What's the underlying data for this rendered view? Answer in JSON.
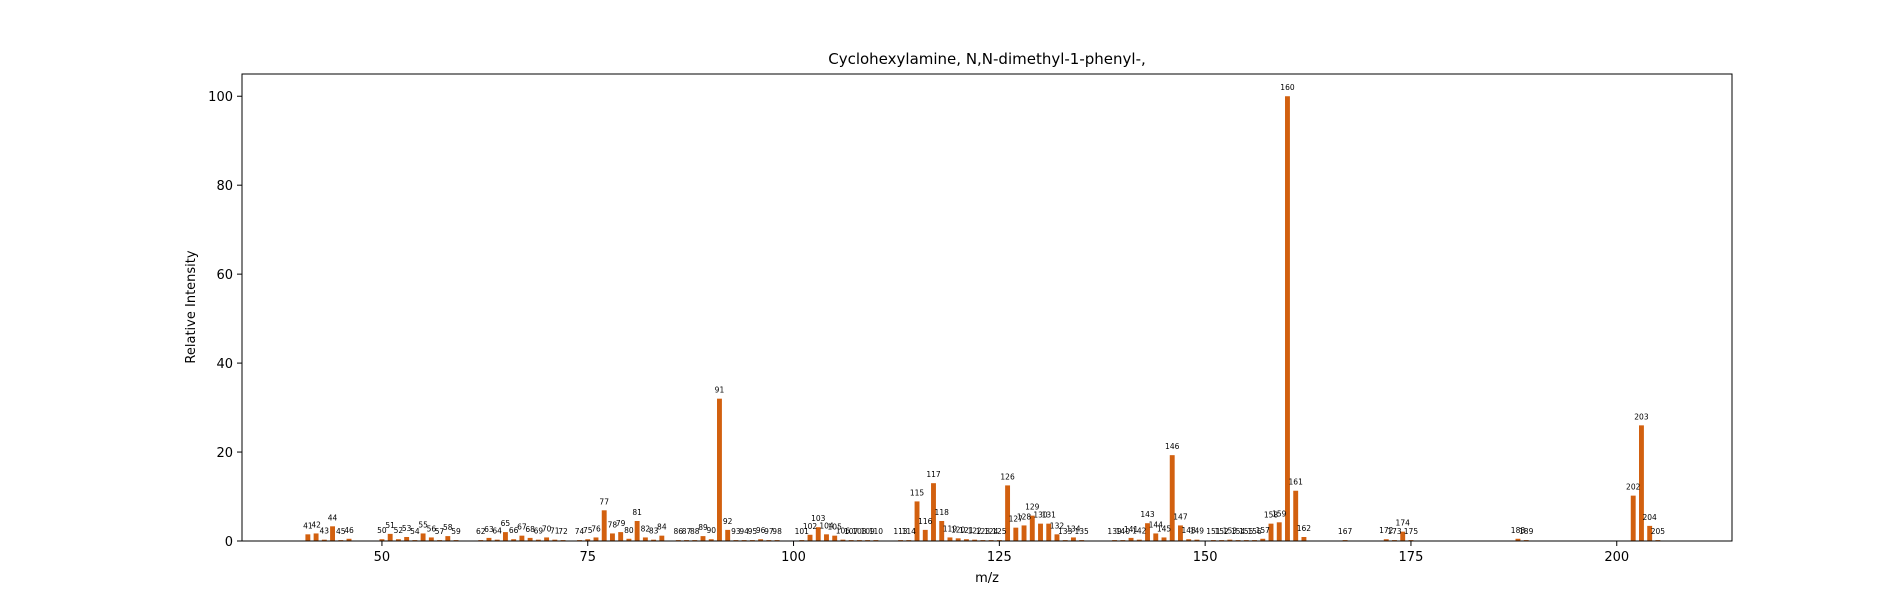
{
  "chart_data": {
    "type": "bar",
    "title": "Cyclohexylamine, N,N-dimethyl-1-phenyl-,",
    "xlabel": "m/z",
    "ylabel": "Relative Intensity",
    "xlim": [
      33,
      214
    ],
    "ylim": [
      0,
      105
    ],
    "xticks": [
      50,
      75,
      100,
      125,
      150,
      175,
      200
    ],
    "yticks": [
      0,
      20,
      40,
      60,
      80,
      100
    ],
    "bar_color": "#d2600f",
    "grid": false,
    "peaks": [
      {
        "x": 41,
        "y": 1.5
      },
      {
        "x": 42,
        "y": 1.7
      },
      {
        "x": 43,
        "y": 0.3
      },
      {
        "x": 44,
        "y": 3.3
      },
      {
        "x": 45,
        "y": 0.2
      },
      {
        "x": 46,
        "y": 0.5
      },
      {
        "x": 50,
        "y": 0.4
      },
      {
        "x": 51,
        "y": 1.6
      },
      {
        "x": 52,
        "y": 0.4
      },
      {
        "x": 53,
        "y": 0.9
      },
      {
        "x": 54,
        "y": 0.2
      },
      {
        "x": 55,
        "y": 1.7
      },
      {
        "x": 56,
        "y": 0.8
      },
      {
        "x": 57,
        "y": 0.2
      },
      {
        "x": 58,
        "y": 1.1
      },
      {
        "x": 59,
        "y": 0.2
      },
      {
        "x": 62,
        "y": 0.2
      },
      {
        "x": 63,
        "y": 0.7
      },
      {
        "x": 64,
        "y": 0.3
      },
      {
        "x": 65,
        "y": 2.0
      },
      {
        "x": 66,
        "y": 0.4
      },
      {
        "x": 67,
        "y": 1.2
      },
      {
        "x": 68,
        "y": 0.7
      },
      {
        "x": 69,
        "y": 0.3
      },
      {
        "x": 70,
        "y": 0.8
      },
      {
        "x": 71,
        "y": 0.3
      },
      {
        "x": 72,
        "y": 0.2
      },
      {
        "x": 74,
        "y": 0.2
      },
      {
        "x": 75,
        "y": 0.4
      },
      {
        "x": 76,
        "y": 0.8
      },
      {
        "x": 77,
        "y": 6.9
      },
      {
        "x": 78,
        "y": 1.7
      },
      {
        "x": 79,
        "y": 2.0
      },
      {
        "x": 80,
        "y": 0.5
      },
      {
        "x": 81,
        "y": 4.5
      },
      {
        "x": 82,
        "y": 0.8
      },
      {
        "x": 83,
        "y": 0.3
      },
      {
        "x": 84,
        "y": 1.2
      },
      {
        "x": 86,
        "y": 0.2
      },
      {
        "x": 87,
        "y": 0.2
      },
      {
        "x": 88,
        "y": 0.2
      },
      {
        "x": 89,
        "y": 1.1
      },
      {
        "x": 90,
        "y": 0.4
      },
      {
        "x": 91,
        "y": 32.0
      },
      {
        "x": 92,
        "y": 2.5
      },
      {
        "x": 93,
        "y": 0.2
      },
      {
        "x": 94,
        "y": 0.2
      },
      {
        "x": 95,
        "y": 0.2
      },
      {
        "x": 96,
        "y": 0.4
      },
      {
        "x": 97,
        "y": 0.2
      },
      {
        "x": 98,
        "y": 0.2
      },
      {
        "x": 101,
        "y": 0.2
      },
      {
        "x": 102,
        "y": 1.4
      },
      {
        "x": 103,
        "y": 3.1
      },
      {
        "x": 104,
        "y": 1.5
      },
      {
        "x": 105,
        "y": 1.2
      },
      {
        "x": 106,
        "y": 0.3
      },
      {
        "x": 107,
        "y": 0.2
      },
      {
        "x": 108,
        "y": 0.2
      },
      {
        "x": 109,
        "y": 0.2
      },
      {
        "x": 110,
        "y": 0.2
      },
      {
        "x": 113,
        "y": 0.2
      },
      {
        "x": 114,
        "y": 0.2
      },
      {
        "x": 115,
        "y": 8.9
      },
      {
        "x": 116,
        "y": 2.5
      },
      {
        "x": 117,
        "y": 13.0
      },
      {
        "x": 118,
        "y": 4.5
      },
      {
        "x": 119,
        "y": 0.8
      },
      {
        "x": 120,
        "y": 0.6
      },
      {
        "x": 121,
        "y": 0.4
      },
      {
        "x": 122,
        "y": 0.3
      },
      {
        "x": 123,
        "y": 0.2
      },
      {
        "x": 124,
        "y": 0.2
      },
      {
        "x": 125,
        "y": 0.2
      },
      {
        "x": 126,
        "y": 12.5
      },
      {
        "x": 127,
        "y": 3.0
      },
      {
        "x": 128,
        "y": 3.5
      },
      {
        "x": 129,
        "y": 5.7
      },
      {
        "x": 130,
        "y": 3.9
      },
      {
        "x": 131,
        "y": 3.9
      },
      {
        "x": 132,
        "y": 1.5
      },
      {
        "x": 133,
        "y": 0.2
      },
      {
        "x": 134,
        "y": 0.8
      },
      {
        "x": 135,
        "y": 0.2
      },
      {
        "x": 139,
        "y": 0.2
      },
      {
        "x": 140,
        "y": 0.2
      },
      {
        "x": 141,
        "y": 0.7
      },
      {
        "x": 142,
        "y": 0.3
      },
      {
        "x": 143,
        "y": 4.0
      },
      {
        "x": 144,
        "y": 1.7
      },
      {
        "x": 145,
        "y": 0.8
      },
      {
        "x": 146,
        "y": 19.3
      },
      {
        "x": 147,
        "y": 3.5
      },
      {
        "x": 148,
        "y": 0.4
      },
      {
        "x": 149,
        "y": 0.3
      },
      {
        "x": 151,
        "y": 0.2
      },
      {
        "x": 152,
        "y": 0.2
      },
      {
        "x": 153,
        "y": 0.3
      },
      {
        "x": 154,
        "y": 0.2
      },
      {
        "x": 155,
        "y": 0.2
      },
      {
        "x": 156,
        "y": 0.2
      },
      {
        "x": 157,
        "y": 0.5
      },
      {
        "x": 158,
        "y": 3.9
      },
      {
        "x": 159,
        "y": 4.2
      },
      {
        "x": 160,
        "y": 100.0
      },
      {
        "x": 161,
        "y": 11.3
      },
      {
        "x": 162,
        "y": 0.9
      },
      {
        "x": 167,
        "y": 0.2
      },
      {
        "x": 172,
        "y": 0.4
      },
      {
        "x": 173,
        "y": 0.2
      },
      {
        "x": 174,
        "y": 2.1
      },
      {
        "x": 175,
        "y": 0.2
      },
      {
        "x": 188,
        "y": 0.5
      },
      {
        "x": 189,
        "y": 0.2
      },
      {
        "x": 202,
        "y": 10.2
      },
      {
        "x": 203,
        "y": 26.0
      },
      {
        "x": 204,
        "y": 3.4
      },
      {
        "x": 205,
        "y": 0.2
      }
    ]
  }
}
